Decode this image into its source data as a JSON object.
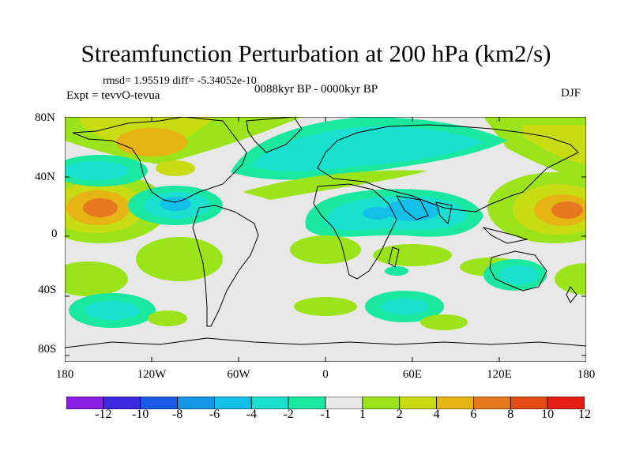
{
  "title": "Streamfunction Perturbation at 200 hPa (km2/s)",
  "stats": "rmsd= 1.95519 diff= -5.34052e-10",
  "experiment": "Expt = tevvO-tevua",
  "period": "0088kyr BP - 0000kyr BP",
  "season": "DJF",
  "lat_labels": [
    "80N",
    "40N",
    "0",
    "40S",
    "80S"
  ],
  "lon_labels": [
    "180",
    "120W",
    "60W",
    "0",
    "60E",
    "120E",
    "180"
  ],
  "colorbar": {
    "labels": [
      "-12",
      "-10",
      "-8",
      "-6",
      "-4",
      "-2",
      "-1",
      "1",
      "2",
      "4",
      "6",
      "8",
      "10",
      "12"
    ],
    "colors": [
      "#8a1ee6",
      "#3c28e0",
      "#1a5ae6",
      "#1496e6",
      "#12bfe6",
      "#1ae0d0",
      "#1ae8a0",
      "#e8e8e8",
      "#9be31a",
      "#c8dc14",
      "#e6b414",
      "#e6781e",
      "#e64b14",
      "#e61e14"
    ]
  }
}
